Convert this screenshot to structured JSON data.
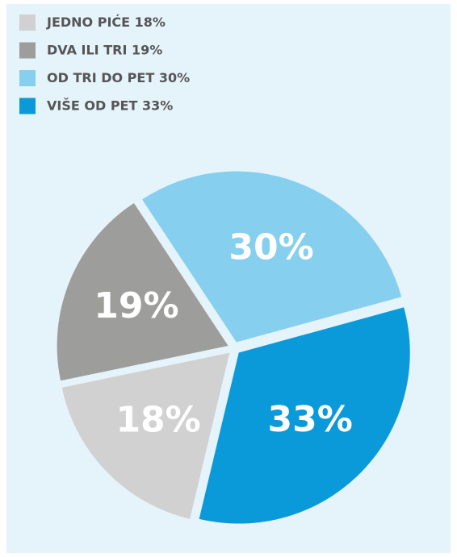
{
  "chart_data": {
    "type": "pie",
    "categories": [
      "JEDNO PIĆE",
      "DVA ILI TRI",
      "OD TRI DO PET",
      "VIŠE OD PET"
    ],
    "values": [
      18,
      19,
      30,
      33
    ],
    "value_labels": [
      "18%",
      "19%",
      "30%",
      "33%"
    ],
    "colors": [
      "#d1d1d1",
      "#9d9d9c",
      "#86cfee",
      "#0a9ad9"
    ],
    "legend": "top-left"
  }
}
